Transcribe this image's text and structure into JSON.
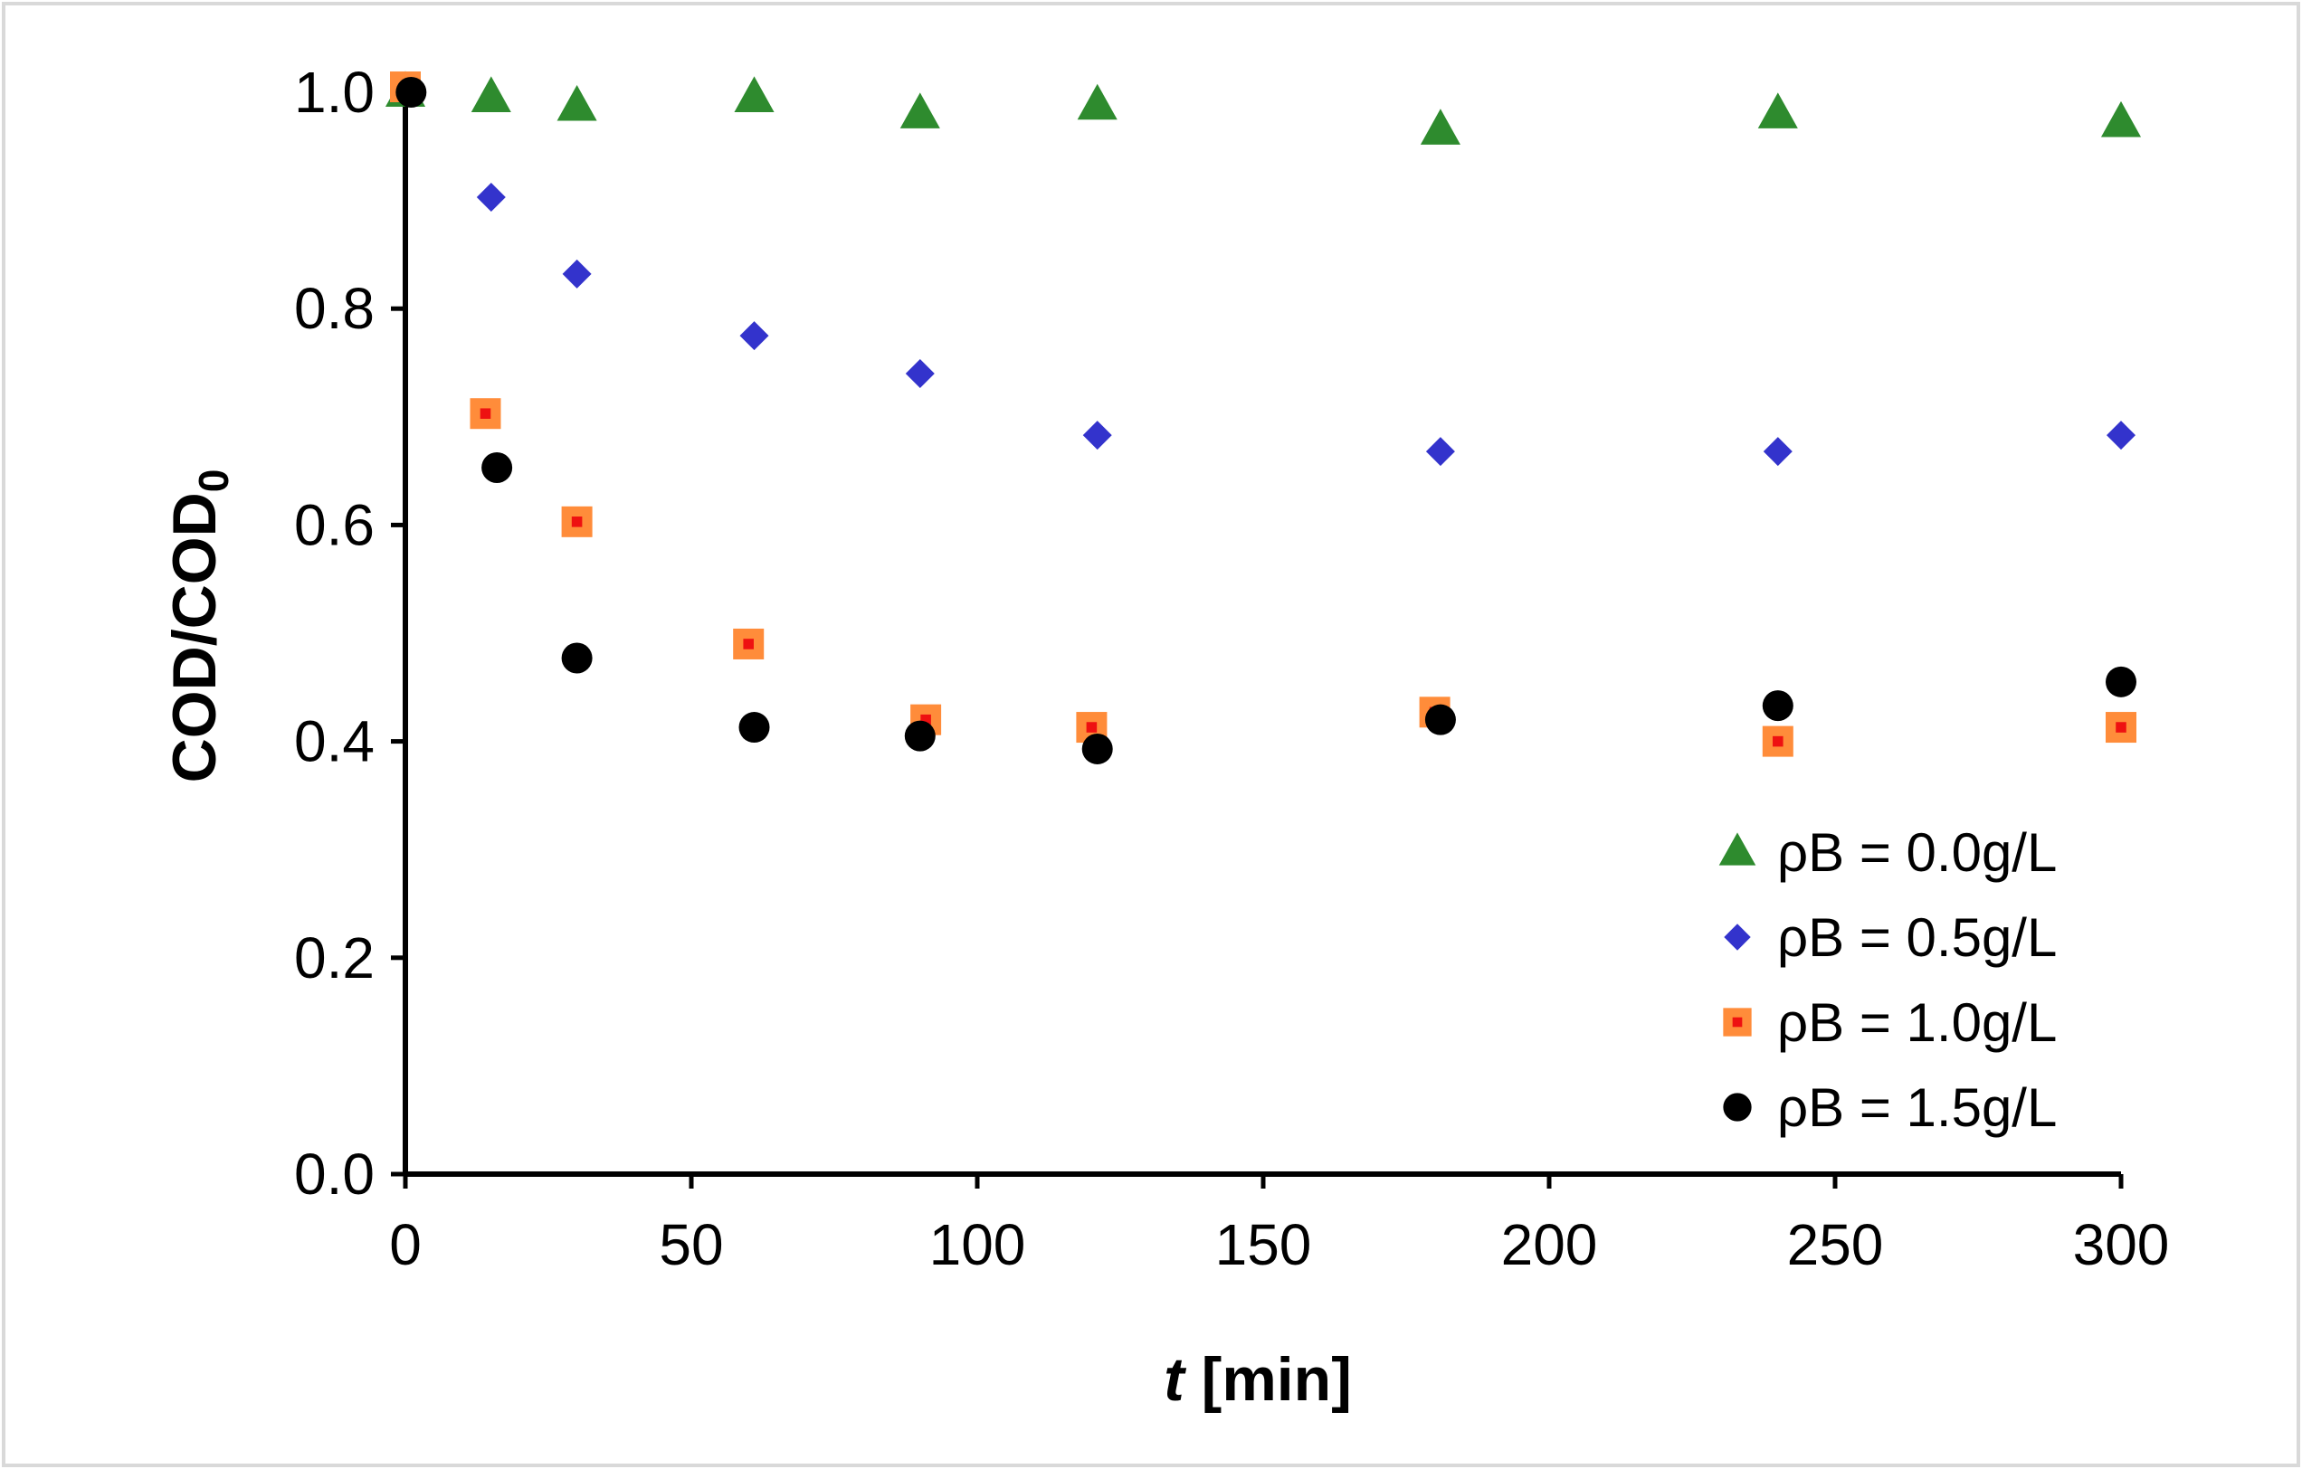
{
  "chart_data": {
    "type": "scatter",
    "xlabel_italic": "t",
    "xlabel_rest": " [min]",
    "ylabel_main": "COD/COD",
    "ylabel_sub": "0",
    "xlim": [
      0,
      300
    ],
    "ylim": [
      0,
      1.0
    ],
    "xticks": [
      0,
      50,
      100,
      150,
      200,
      250,
      300
    ],
    "xtick_labels": [
      "0",
      "50",
      "100",
      "150",
      "200",
      "250",
      "300"
    ],
    "yticks": [
      0.0,
      0.2,
      0.4,
      0.6,
      0.8,
      1.0
    ],
    "ytick_labels": [
      "0.0",
      "0.2",
      "0.4",
      "0.6",
      "0.8",
      "1.0"
    ],
    "grid": false,
    "legend_position": "bottom-right",
    "series": [
      {
        "name": "ρB = 0.0g/L",
        "marker": "triangle",
        "color": "#2e8b2e",
        "x": [
          0,
          15,
          30,
          61,
          90,
          121,
          181,
          240,
          300
        ],
        "y": [
          1.0,
          0.995,
          0.987,
          0.995,
          0.98,
          0.988,
          0.965,
          0.98,
          0.972
        ]
      },
      {
        "name": "ρB = 0.5g/L",
        "marker": "diamond",
        "color": "#3333cc",
        "x": [
          15,
          30,
          61,
          90,
          121,
          181,
          240,
          300
        ],
        "y": [
          0.903,
          0.832,
          0.775,
          0.74,
          0.683,
          0.668,
          0.668,
          0.683
        ]
      },
      {
        "name": "ρB = 1.0g/L",
        "marker": "square",
        "color": "#ff8c3a",
        "inner_color": "#ee1111",
        "x": [
          0,
          14,
          30,
          60,
          91,
          120,
          180,
          240,
          300
        ],
        "y": [
          1.005,
          0.703,
          0.603,
          0.49,
          0.42,
          0.413,
          0.427,
          0.4,
          0.413
        ]
      },
      {
        "name": "ρB = 1.5g/L",
        "marker": "circle",
        "color": "#000000",
        "x": [
          1,
          16,
          30,
          61,
          90,
          121,
          181,
          240,
          300
        ],
        "y": [
          1.0,
          0.653,
          0.477,
          0.413,
          0.405,
          0.393,
          0.42,
          0.433,
          0.455
        ]
      }
    ]
  }
}
